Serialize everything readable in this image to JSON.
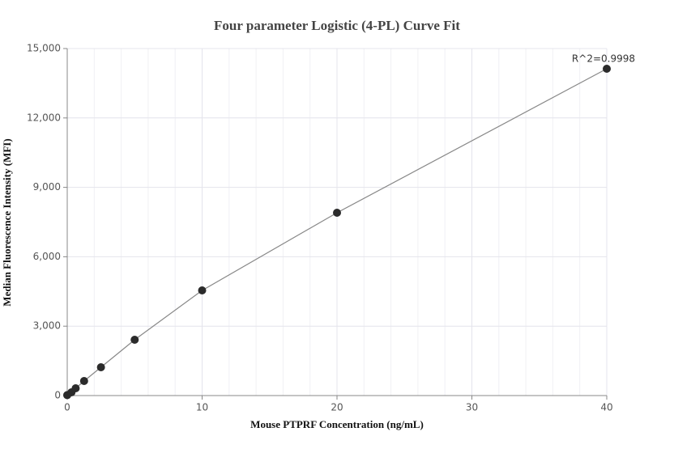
{
  "chart_data": {
    "type": "scatter",
    "title": "Four parameter Logistic (4-PL) Curve Fit",
    "x_label": "Mouse PTPRF Concentration (ng/mL)",
    "y_label": "Median Fluorescence Intensity (MFI)",
    "annotation": "R^2=0.9998",
    "x": [
      0,
      0.3125,
      0.625,
      1.25,
      2.5,
      5,
      10,
      20,
      40
    ],
    "values": [
      20,
      140,
      315,
      629,
      1224,
      2413,
      4545,
      7902,
      14126
    ],
    "color": "#2b2b2b",
    "line_color": "#888888",
    "xlim": [
      0,
      40
    ],
    "xticks": [
      0,
      10,
      20,
      30,
      40
    ],
    "ylim": [
      0,
      15000
    ],
    "yticks": [
      0,
      {
        "value": 3000,
        "label": "3,000"
      },
      {
        "value": 6000,
        "label": "6,000"
      },
      {
        "value": 9000,
        "label": "9,000"
      },
      {
        "value": 12000,
        "label": "12,000"
      },
      {
        "value": 15000,
        "label": "15,000"
      }
    ],
    "grid": true
  }
}
